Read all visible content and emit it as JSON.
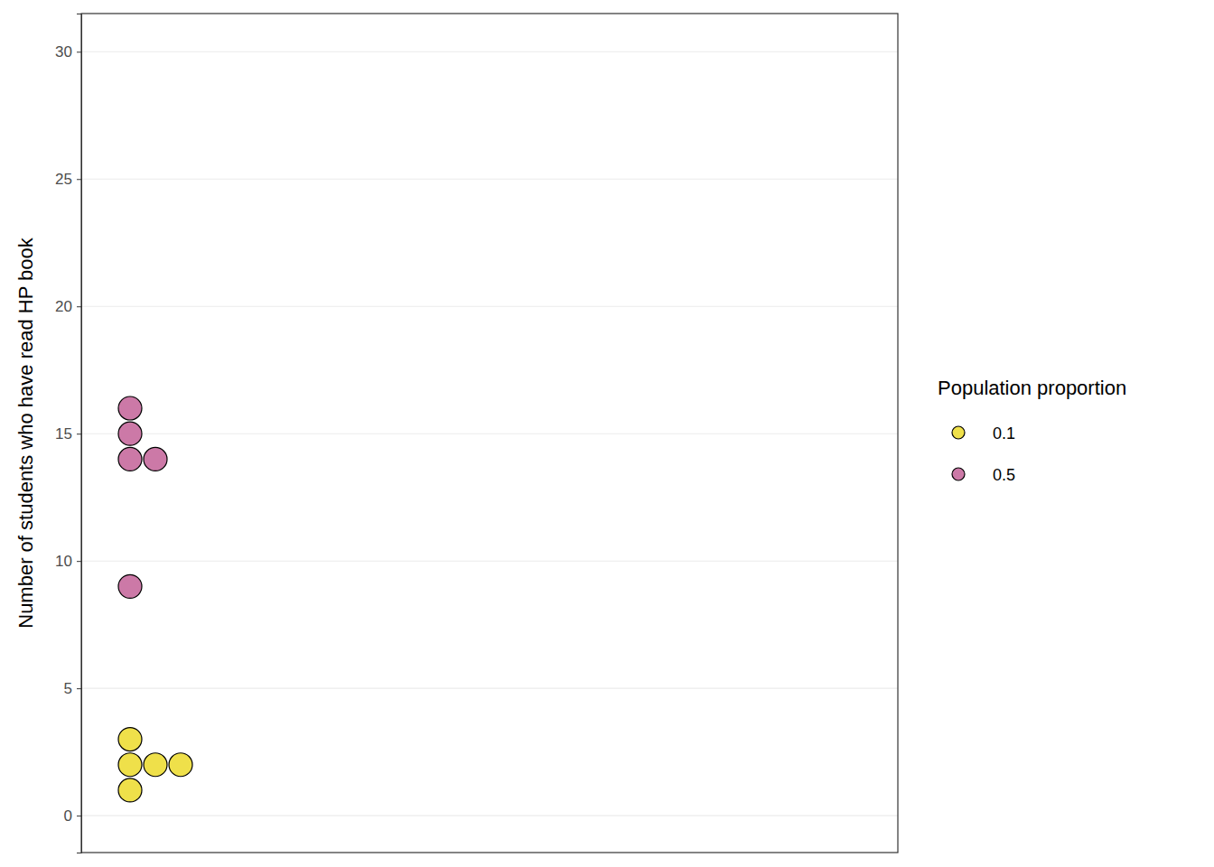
{
  "chart_data": {
    "type": "dotplot",
    "y_label": "Number of students who have read HP book",
    "legend_title": "Population proportion",
    "legend": "right",
    "grid": true,
    "tick_labels": "y",
    "ylim": [
      -1.45,
      31.5
    ],
    "yticks": [
      0,
      5,
      10,
      15,
      20,
      25,
      30
    ],
    "series": [
      {
        "name": "0.1",
        "color": "#efe04a",
        "values": [
          1,
          2,
          2,
          2,
          3
        ]
      },
      {
        "name": "0.5",
        "color": "#cc79a7",
        "values": [
          9,
          14,
          14,
          15,
          16
        ]
      }
    ]
  }
}
